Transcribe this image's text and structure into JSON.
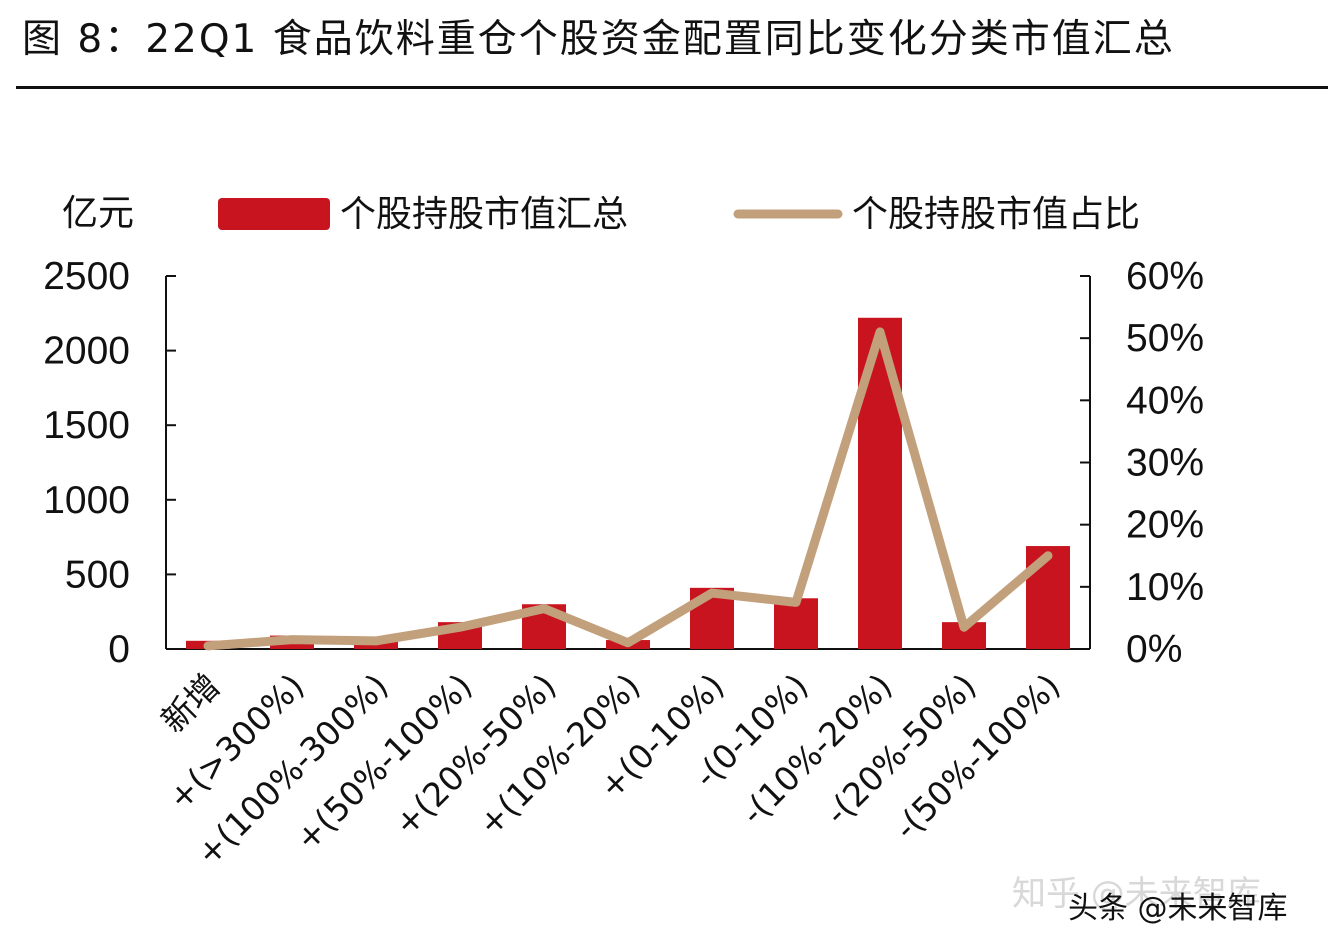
{
  "header": {
    "title": "图 8：22Q1 食品饮料重仓个股资金配置同比变化分类市值汇总"
  },
  "chart_data": {
    "type": "bar",
    "title": "",
    "y_unit_label": "亿元",
    "categories": [
      "新增",
      "+(>300%)",
      "+(100%-300%)",
      "+(50%-100%)",
      "+(20%-50%)",
      "+(10%-20%)",
      "+(0-10%)",
      "-(0-10%)",
      "-(10%-20%)",
      "-(20%-50%)",
      "-(50%-100%)"
    ],
    "series": [
      {
        "name": "个股持股市值汇总",
        "type": "bar",
        "axis": "left",
        "color": "#c8141e",
        "values": [
          55,
          90,
          65,
          180,
          300,
          60,
          410,
          340,
          2220,
          180,
          690
        ]
      },
      {
        "name": "个股持股市值占比",
        "type": "line",
        "axis": "right",
        "color": "#c2a07c",
        "values": [
          0.005,
          0.015,
          0.013,
          0.035,
          0.065,
          0.01,
          0.09,
          0.075,
          0.51,
          0.035,
          0.15
        ]
      }
    ],
    "y_left": {
      "min": 0,
      "max": 2500,
      "ticks": [
        "0",
        "500",
        "1000",
        "1500",
        "2000",
        "2500"
      ]
    },
    "y_right": {
      "min": 0,
      "max": 0.6,
      "ticks": [
        "0%",
        "10%",
        "20%",
        "30%",
        "40%",
        "50%",
        "60%"
      ]
    },
    "legend_position": "top",
    "grid": false
  },
  "watermark": {
    "text": "知乎 @未来智库",
    "overlay": "头条 @未来智库"
  }
}
